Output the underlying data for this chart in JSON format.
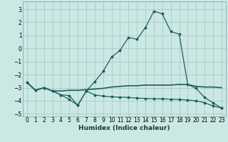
{
  "xlabel": "Humidex (Indice chaleur)",
  "background_color": "#cce8e4",
  "grid_color": "#aacfcb",
  "line_color": "#1a6060",
  "xlim": [
    -0.5,
    23.5
  ],
  "ylim": [
    -5.2,
    3.6
  ],
  "xticks": [
    0,
    1,
    2,
    3,
    4,
    5,
    6,
    7,
    8,
    9,
    10,
    11,
    12,
    13,
    14,
    15,
    16,
    17,
    18,
    19,
    20,
    21,
    22,
    23
  ],
  "yticks": [
    -5,
    -4,
    -3,
    -2,
    -1,
    0,
    1,
    2,
    3
  ],
  "line1_x": [
    0,
    1,
    2,
    3,
    4,
    5,
    6,
    7,
    8,
    9,
    10,
    11,
    12,
    13,
    14,
    15,
    16,
    17,
    18,
    19,
    20,
    21,
    22,
    23
  ],
  "line1_y": [
    -2.6,
    -3.2,
    -3.0,
    -3.25,
    -3.55,
    -3.9,
    -4.35,
    -3.25,
    -2.55,
    -1.75,
    -0.65,
    -0.15,
    0.85,
    0.7,
    1.6,
    2.85,
    2.65,
    1.3,
    1.1,
    -2.75,
    -3.05,
    -3.75,
    -4.15,
    -4.55
  ],
  "line2_x": [
    0,
    1,
    2,
    3,
    4,
    5,
    6,
    7,
    8,
    9,
    10,
    11,
    12,
    13,
    14,
    15,
    16,
    17,
    18,
    19,
    20,
    21,
    22,
    23
  ],
  "line2_y": [
    -2.6,
    -3.2,
    -3.0,
    -3.25,
    -3.25,
    -3.2,
    -3.2,
    -3.15,
    -3.1,
    -3.05,
    -2.95,
    -2.9,
    -2.85,
    -2.85,
    -2.8,
    -2.8,
    -2.8,
    -2.8,
    -2.75,
    -2.75,
    -2.9,
    -2.95,
    -2.95,
    -3.0
  ],
  "line3_x": [
    0,
    1,
    2,
    3,
    4,
    5,
    6,
    7,
    8,
    9,
    10,
    11,
    12,
    13,
    14,
    15,
    16,
    17,
    18,
    19,
    20,
    21,
    22,
    23
  ],
  "line3_y": [
    -2.6,
    -3.2,
    -3.0,
    -3.25,
    -3.55,
    -3.6,
    -4.35,
    -3.25,
    -3.55,
    -3.65,
    -3.7,
    -3.72,
    -3.75,
    -3.8,
    -3.82,
    -3.85,
    -3.85,
    -3.88,
    -3.9,
    -3.95,
    -4.0,
    -4.15,
    -4.4,
    -4.55
  ]
}
